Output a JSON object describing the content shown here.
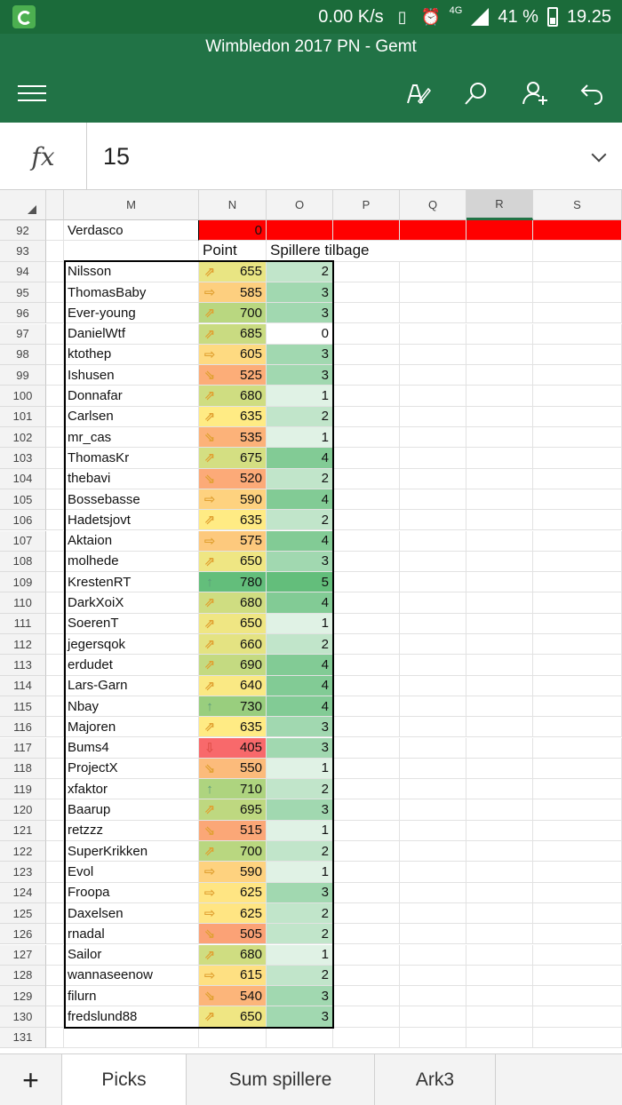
{
  "status_bar": {
    "network_speed": "0.00 K/s",
    "network_type": "4G",
    "battery": "41 %",
    "time": "19.25"
  },
  "title_bar": {
    "title": "Wimbledon 2017 PN - Gemt"
  },
  "formula_bar": {
    "fx_label": "fx",
    "value": "15"
  },
  "columns": [
    {
      "label": "",
      "selected": false
    },
    {
      "label": "M",
      "selected": false
    },
    {
      "label": "N",
      "selected": false
    },
    {
      "label": "O",
      "selected": false
    },
    {
      "label": "P",
      "selected": false
    },
    {
      "label": "Q",
      "selected": false
    },
    {
      "label": "R",
      "selected": true
    },
    {
      "label": "S",
      "selected": false
    }
  ],
  "header_row": {
    "row": "93",
    "point_label": "Point",
    "spillere_label": "Spillere tilbage"
  },
  "top_row": {
    "row": "92",
    "name": "Verdasco",
    "value": "0"
  },
  "rows": [
    {
      "row": "94",
      "name": "Nilsson",
      "trend": "up-right",
      "point": "655",
      "spillere": "2"
    },
    {
      "row": "95",
      "name": "ThomasBaby",
      "trend": "right",
      "point": "585",
      "spillere": "3"
    },
    {
      "row": "96",
      "name": "Ever-young",
      "trend": "up-right",
      "point": "700",
      "spillere": "3"
    },
    {
      "row": "97",
      "name": "DanielWtf",
      "trend": "up-right",
      "point": "685",
      "spillere": "0"
    },
    {
      "row": "98",
      "name": "ktothep",
      "trend": "right",
      "point": "605",
      "spillere": "3"
    },
    {
      "row": "99",
      "name": "Ishusen",
      "trend": "down-right",
      "point": "525",
      "spillere": "3"
    },
    {
      "row": "100",
      "name": "Donnafar",
      "trend": "up-right",
      "point": "680",
      "spillere": "1"
    },
    {
      "row": "101",
      "name": "Carlsen",
      "trend": "up-right",
      "point": "635",
      "spillere": "2"
    },
    {
      "row": "102",
      "name": "mr_cas",
      "trend": "down-right",
      "point": "535",
      "spillere": "1"
    },
    {
      "row": "103",
      "name": "ThomasKr",
      "trend": "up-right",
      "point": "675",
      "spillere": "4"
    },
    {
      "row": "104",
      "name": "thebavi",
      "trend": "down-right",
      "point": "520",
      "spillere": "2"
    },
    {
      "row": "105",
      "name": "Bossebasse",
      "trend": "right",
      "point": "590",
      "spillere": "4"
    },
    {
      "row": "106",
      "name": "Hadetsjovt",
      "trend": "up-right",
      "point": "635",
      "spillere": "2"
    },
    {
      "row": "107",
      "name": "Aktaion",
      "trend": "right",
      "point": "575",
      "spillere": "4"
    },
    {
      "row": "108",
      "name": "molhede",
      "trend": "up-right",
      "point": "650",
      "spillere": "3"
    },
    {
      "row": "109",
      "name": "KrestenRT",
      "trend": "up",
      "point": "780",
      "spillere": "5"
    },
    {
      "row": "110",
      "name": "DarkXoiX",
      "trend": "up-right",
      "point": "680",
      "spillere": "4"
    },
    {
      "row": "111",
      "name": "SoerenT",
      "trend": "up-right",
      "point": "650",
      "spillere": "1"
    },
    {
      "row": "112",
      "name": "jegersqok",
      "trend": "up-right",
      "point": "660",
      "spillere": "2"
    },
    {
      "row": "113",
      "name": "erdudet",
      "trend": "up-right",
      "point": "690",
      "spillere": "4"
    },
    {
      "row": "114",
      "name": "Lars-Garn",
      "trend": "up-right",
      "point": "640",
      "spillere": "4"
    },
    {
      "row": "115",
      "name": "Nbay",
      "trend": "up",
      "point": "730",
      "spillere": "4"
    },
    {
      "row": "116",
      "name": "Majoren",
      "trend": "up-right",
      "point": "635",
      "spillere": "3"
    },
    {
      "row": "117",
      "name": "Bums4",
      "trend": "down",
      "point": "405",
      "spillere": "3"
    },
    {
      "row": "118",
      "name": "ProjectX",
      "trend": "down-right",
      "point": "550",
      "spillere": "1"
    },
    {
      "row": "119",
      "name": "xfaktor",
      "trend": "up",
      "point": "710",
      "spillere": "2"
    },
    {
      "row": "120",
      "name": "Baarup",
      "trend": "up-right",
      "point": "695",
      "spillere": "3"
    },
    {
      "row": "121",
      "name": "retzzz",
      "trend": "down-right",
      "point": "515",
      "spillere": "1"
    },
    {
      "row": "122",
      "name": "SuperKrikken",
      "trend": "up-right",
      "point": "700",
      "spillere": "2"
    },
    {
      "row": "123",
      "name": "Evol",
      "trend": "right",
      "point": "590",
      "spillere": "1"
    },
    {
      "row": "124",
      "name": "Froopa",
      "trend": "right",
      "point": "625",
      "spillere": "3"
    },
    {
      "row": "125",
      "name": "Daxelsen",
      "trend": "right",
      "point": "625",
      "spillere": "2"
    },
    {
      "row": "126",
      "name": "rnadal",
      "trend": "down-right",
      "point": "505",
      "spillere": "2"
    },
    {
      "row": "127",
      "name": "Sailor",
      "trend": "up-right",
      "point": "680",
      "spillere": "1"
    },
    {
      "row": "128",
      "name": "wannaseenow",
      "trend": "right",
      "point": "615",
      "spillere": "2"
    },
    {
      "row": "129",
      "name": "filurn",
      "trend": "down-right",
      "point": "540",
      "spillere": "3"
    },
    {
      "row": "130",
      "name": "fredslund88",
      "trend": "up-right",
      "point": "650",
      "spillere": "3"
    }
  ],
  "last_row": "131",
  "sheet_tabs": [
    {
      "label": "Picks",
      "active": true
    },
    {
      "label": "Sum spillere",
      "active": false
    },
    {
      "label": "Ark3",
      "active": false
    }
  ],
  "colors": {
    "status_bar": "#1b6b3a",
    "title_bar": "#217346",
    "highlight_red": "#ff0000"
  }
}
